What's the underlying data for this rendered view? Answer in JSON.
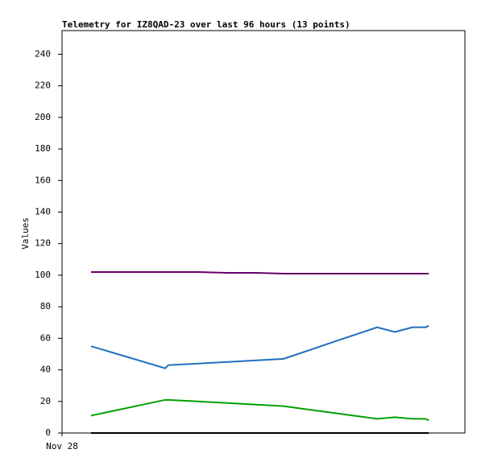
{
  "chart_data": {
    "type": "line",
    "title": "Telemetry for IZ8QAD-23 over last 96 hours (13 points)",
    "y_label": "Values",
    "x": [
      6.9,
      24.6,
      25.3,
      32.4,
      39.4,
      46.3,
      52.8,
      63.9,
      75.1,
      79.3,
      83.5,
      86.6,
      87.4
    ],
    "xlim": [
      0,
      96
    ],
    "xticks": [
      {
        "value": 0,
        "label": "Nov 28"
      }
    ],
    "ylim": [
      0,
      255
    ],
    "yticks": [
      0,
      20,
      40,
      60,
      80,
      100,
      120,
      140,
      160,
      180,
      200,
      220,
      240
    ],
    "series": [
      {
        "color": "#660066",
        "values": [
          102,
          102,
          102,
          102,
          101.5,
          101.5,
          101,
          101,
          101,
          101,
          101,
          101,
          101
        ]
      },
      {
        "color": "#1f6fbf",
        "values": [
          55,
          41,
          43,
          44,
          45,
          46,
          47,
          57,
          67,
          64,
          67,
          67,
          68
        ]
      },
      {
        "color": "#00a000",
        "values": [
          11,
          21,
          21,
          20,
          19,
          18,
          17,
          13,
          9,
          10,
          9,
          9,
          8
        ]
      },
      {
        "color": "#000000",
        "values": [
          0,
          0,
          0,
          0,
          0,
          0,
          0,
          0,
          0,
          0,
          0,
          0,
          0
        ]
      }
    ]
  }
}
